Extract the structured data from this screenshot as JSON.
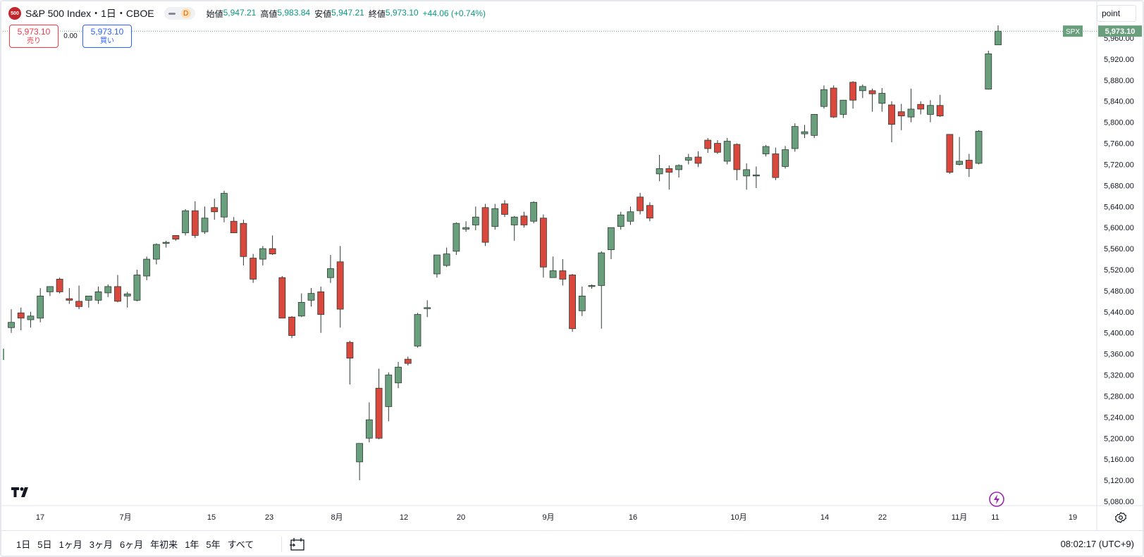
{
  "legend": {
    "logo_text": "500",
    "title": "S&P 500 Index・1日・CBOE",
    "badge_d": "D",
    "open_label": "始値",
    "open": "5,947.21",
    "high_label": "高値",
    "high": "5,983.84",
    "low_label": "安値",
    "low": "5,947.21",
    "close_label": "終値",
    "close": "5,973.10",
    "change": "+44.06 (+0.74%)"
  },
  "trade": {
    "sell_price": "5,973.10",
    "sell_label": "売り",
    "spread": "0.00",
    "buy_price": "5,973.10",
    "buy_label": "買い"
  },
  "scale_button": "point",
  "price_tag": {
    "symbol": "SPX",
    "value": "5,973.10"
  },
  "colors": {
    "up": "#6a9f7e",
    "down": "#d9473d",
    "up_border": "#2e3b33",
    "down_border": "#2e3b33"
  },
  "chart_data": {
    "type": "candlestick",
    "symbol": "SPX",
    "y_ticks": [
      "5,960.00",
      "5,920.00",
      "5,880.00",
      "5,840.00",
      "5,800.00",
      "5,760.00",
      "5,720.00",
      "5,680.00",
      "5,640.00",
      "5,600.00",
      "5,560.00",
      "5,520.00",
      "5,480.00",
      "5,440.00",
      "5,400.00",
      "5,360.00",
      "5,320.00",
      "5,280.00",
      "5,240.00",
      "5,200.00",
      "5,160.00",
      "5,120.00",
      "5,080.00"
    ],
    "ylim": [
      5080,
      5960
    ],
    "x_labels": [
      "17",
      "7月",
      "15",
      "23",
      "8月",
      "12",
      "20",
      "9月",
      "16",
      "10月",
      "14",
      "22",
      "11月",
      "11",
      "19"
    ],
    "last_price": 5973.1,
    "candles": [
      {
        "o": 5410,
        "h": 5445,
        "l": 5400,
        "c": 5420
      },
      {
        "o": 5438,
        "h": 5448,
        "l": 5405,
        "c": 5428
      },
      {
        "o": 5425,
        "h": 5440,
        "l": 5410,
        "c": 5432
      },
      {
        "o": 5428,
        "h": 5485,
        "l": 5420,
        "c": 5470
      },
      {
        "o": 5478,
        "h": 5487,
        "l": 5470,
        "c": 5488
      },
      {
        "o": 5502,
        "h": 5505,
        "l": 5475,
        "c": 5478
      },
      {
        "o": 5465,
        "h": 5485,
        "l": 5455,
        "c": 5462
      },
      {
        "o": 5460,
        "h": 5490,
        "l": 5445,
        "c": 5450
      },
      {
        "o": 5462,
        "h": 5470,
        "l": 5448,
        "c": 5470
      },
      {
        "o": 5462,
        "h": 5488,
        "l": 5455,
        "c": 5478
      },
      {
        "o": 5476,
        "h": 5492,
        "l": 5468,
        "c": 5488
      },
      {
        "o": 5488,
        "h": 5510,
        "l": 5458,
        "c": 5460
      },
      {
        "o": 5470,
        "h": 5478,
        "l": 5448,
        "c": 5474
      },
      {
        "o": 5462,
        "h": 5520,
        "l": 5460,
        "c": 5510
      },
      {
        "o": 5508,
        "h": 5545,
        "l": 5500,
        "c": 5540
      },
      {
        "o": 5540,
        "h": 5570,
        "l": 5530,
        "c": 5568
      },
      {
        "o": 5570,
        "h": 5575,
        "l": 5562,
        "c": 5572
      },
      {
        "o": 5585,
        "h": 5585,
        "l": 5575,
        "c": 5578
      },
      {
        "o": 5590,
        "h": 5635,
        "l": 5585,
        "c": 5632
      },
      {
        "o": 5632,
        "h": 5650,
        "l": 5580,
        "c": 5585
      },
      {
        "o": 5592,
        "h": 5640,
        "l": 5588,
        "c": 5618
      },
      {
        "o": 5638,
        "h": 5655,
        "l": 5615,
        "c": 5630
      },
      {
        "o": 5620,
        "h": 5670,
        "l": 5610,
        "c": 5665
      },
      {
        "o": 5612,
        "h": 5620,
        "l": 5595,
        "c": 5590
      },
      {
        "o": 5608,
        "h": 5615,
        "l": 5528,
        "c": 5545
      },
      {
        "o": 5542,
        "h": 5550,
        "l": 5495,
        "c": 5502
      },
      {
        "o": 5540,
        "h": 5565,
        "l": 5528,
        "c": 5560
      },
      {
        "o": 5560,
        "h": 5585,
        "l": 5548,
        "c": 5550
      },
      {
        "o": 5505,
        "h": 5508,
        "l": 5428,
        "c": 5428
      },
      {
        "o": 5430,
        "h": 5432,
        "l": 5390,
        "c": 5395
      },
      {
        "o": 5432,
        "h": 5475,
        "l": 5430,
        "c": 5458
      },
      {
        "o": 5462,
        "h": 5485,
        "l": 5450,
        "c": 5475
      },
      {
        "o": 5478,
        "h": 5488,
        "l": 5400,
        "c": 5435
      },
      {
        "o": 5505,
        "h": 5548,
        "l": 5495,
        "c": 5522
      },
      {
        "o": 5535,
        "h": 5565,
        "l": 5410,
        "c": 5445
      },
      {
        "o": 5382,
        "h": 5385,
        "l": 5302,
        "c": 5352
      },
      {
        "o": 5155,
        "h": 5190,
        "l": 5120,
        "c": 5190
      },
      {
        "o": 5200,
        "h": 5268,
        "l": 5192,
        "c": 5235
      },
      {
        "o": 5295,
        "h": 5332,
        "l": 5198,
        "c": 5200
      },
      {
        "o": 5260,
        "h": 5325,
        "l": 5232,
        "c": 5320
      },
      {
        "o": 5305,
        "h": 5345,
        "l": 5295,
        "c": 5335
      },
      {
        "o": 5350,
        "h": 5355,
        "l": 5338,
        "c": 5342
      },
      {
        "o": 5375,
        "h": 5438,
        "l": 5372,
        "c": 5435
      },
      {
        "o": 5448,
        "h": 5462,
        "l": 5430,
        "c": 5448
      },
      {
        "o": 5512,
        "h": 5545,
        "l": 5505,
        "c": 5548
      },
      {
        "o": 5528,
        "h": 5562,
        "l": 5525,
        "c": 5550
      },
      {
        "o": 5555,
        "h": 5610,
        "l": 5548,
        "c": 5608
      },
      {
        "o": 5597,
        "h": 5612,
        "l": 5592,
        "c": 5600
      },
      {
        "o": 5605,
        "h": 5640,
        "l": 5595,
        "c": 5620
      },
      {
        "o": 5638,
        "h": 5645,
        "l": 5565,
        "c": 5572
      },
      {
        "o": 5602,
        "h": 5645,
        "l": 5596,
        "c": 5636
      },
      {
        "o": 5645,
        "h": 5652,
        "l": 5620,
        "c": 5625
      },
      {
        "o": 5605,
        "h": 5622,
        "l": 5575,
        "c": 5620
      },
      {
        "o": 5622,
        "h": 5630,
        "l": 5600,
        "c": 5605
      },
      {
        "o": 5612,
        "h": 5650,
        "l": 5608,
        "c": 5648
      },
      {
        "o": 5618,
        "h": 5625,
        "l": 5505,
        "c": 5525
      },
      {
        "o": 5505,
        "h": 5545,
        "l": 5505,
        "c": 5518
      },
      {
        "o": 5518,
        "h": 5540,
        "l": 5490,
        "c": 5502
      },
      {
        "o": 5510,
        "h": 5512,
        "l": 5402,
        "c": 5408
      },
      {
        "o": 5442,
        "h": 5488,
        "l": 5432,
        "c": 5470
      },
      {
        "o": 5488,
        "h": 5492,
        "l": 5484,
        "c": 5490
      },
      {
        "o": 5490,
        "h": 5555,
        "l": 5408,
        "c": 5552
      },
      {
        "o": 5558,
        "h": 5600,
        "l": 5540,
        "c": 5600
      },
      {
        "o": 5602,
        "h": 5630,
        "l": 5596,
        "c": 5624
      },
      {
        "o": 5612,
        "h": 5640,
        "l": 5605,
        "c": 5630
      },
      {
        "o": 5658,
        "h": 5666,
        "l": 5625,
        "c": 5632
      },
      {
        "o": 5642,
        "h": 5648,
        "l": 5612,
        "c": 5618
      },
      {
        "o": 5702,
        "h": 5738,
        "l": 5688,
        "c": 5712
      },
      {
        "o": 5712,
        "h": 5718,
        "l": 5672,
        "c": 5705
      },
      {
        "o": 5710,
        "h": 5720,
        "l": 5695,
        "c": 5718
      },
      {
        "o": 5728,
        "h": 5740,
        "l": 5720,
        "c": 5733
      },
      {
        "o": 5734,
        "h": 5745,
        "l": 5715,
        "c": 5722
      },
      {
        "o": 5766,
        "h": 5770,
        "l": 5742,
        "c": 5750
      },
      {
        "o": 5760,
        "h": 5766,
        "l": 5740,
        "c": 5743
      },
      {
        "o": 5726,
        "h": 5770,
        "l": 5720,
        "c": 5764
      },
      {
        "o": 5758,
        "h": 5760,
        "l": 5690,
        "c": 5710
      },
      {
        "o": 5698,
        "h": 5722,
        "l": 5672,
        "c": 5710
      },
      {
        "o": 5700,
        "h": 5716,
        "l": 5675,
        "c": 5700
      },
      {
        "o": 5740,
        "h": 5757,
        "l": 5735,
        "c": 5754
      },
      {
        "o": 5740,
        "h": 5752,
        "l": 5690,
        "c": 5695
      },
      {
        "o": 5716,
        "h": 5755,
        "l": 5712,
        "c": 5748
      },
      {
        "o": 5750,
        "h": 5798,
        "l": 5744,
        "c": 5792
      },
      {
        "o": 5778,
        "h": 5795,
        "l": 5770,
        "c": 5782
      },
      {
        "o": 5775,
        "h": 5815,
        "l": 5770,
        "c": 5815
      },
      {
        "o": 5830,
        "h": 5870,
        "l": 5826,
        "c": 5862
      },
      {
        "o": 5865,
        "h": 5870,
        "l": 5808,
        "c": 5810
      },
      {
        "o": 5815,
        "h": 5842,
        "l": 5808,
        "c": 5842
      },
      {
        "o": 5876,
        "h": 5878,
        "l": 5826,
        "c": 5842
      },
      {
        "o": 5860,
        "h": 5872,
        "l": 5846,
        "c": 5868
      },
      {
        "o": 5860,
        "h": 5864,
        "l": 5820,
        "c": 5854
      },
      {
        "o": 5836,
        "h": 5865,
        "l": 5820,
        "c": 5855
      },
      {
        "o": 5833,
        "h": 5840,
        "l": 5762,
        "c": 5796
      },
      {
        "o": 5820,
        "h": 5835,
        "l": 5785,
        "c": 5812
      },
      {
        "o": 5810,
        "h": 5864,
        "l": 5800,
        "c": 5825
      },
      {
        "o": 5834,
        "h": 5840,
        "l": 5815,
        "c": 5825
      },
      {
        "o": 5815,
        "h": 5842,
        "l": 5800,
        "c": 5832
      },
      {
        "o": 5832,
        "h": 5852,
        "l": 5810,
        "c": 5812
      },
      {
        "o": 5777,
        "h": 5777,
        "l": 5702,
        "c": 5705
      },
      {
        "o": 5720,
        "h": 5772,
        "l": 5718,
        "c": 5726
      },
      {
        "o": 5728,
        "h": 5740,
        "l": 5696,
        "c": 5712
      },
      {
        "o": 5722,
        "h": 5785,
        "l": 5720,
        "c": 5783
      },
      {
        "o": 5863,
        "h": 5936,
        "l": 5862,
        "c": 5930
      },
      {
        "o": 5947,
        "h": 5984,
        "l": 5947,
        "c": 5973
      }
    ]
  },
  "bottom_bar": {
    "ranges": [
      "1日",
      "5日",
      "1ヶ月",
      "3ヶ月",
      "6ヶ月",
      "年初来",
      "1年",
      "5年",
      "すべて"
    ],
    "clock": "08:02:17 (UTC+9)"
  }
}
